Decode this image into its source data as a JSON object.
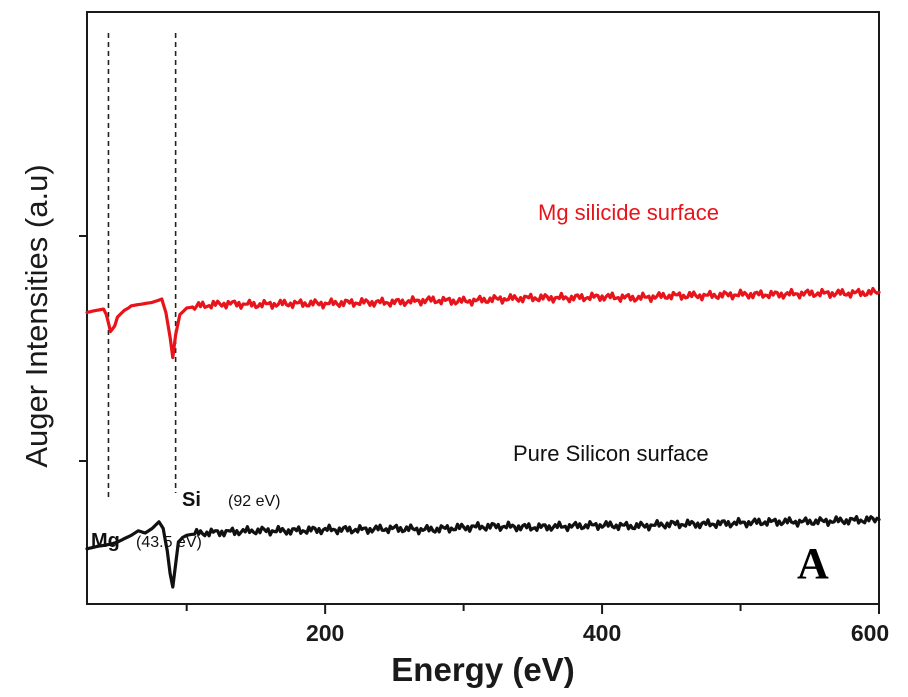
{
  "chart_data": {
    "type": "line",
    "title": "",
    "xlabel": "Energy (eV)",
    "ylabel": "Auger Intensities (a.u)",
    "xlim": [
      28,
      600
    ],
    "x_ticks": [
      200,
      400,
      600
    ],
    "panel_label": "A",
    "grid": false,
    "legend": "none",
    "series": [
      {
        "name": "Mg silicide surface",
        "color": "#e8141b",
        "x": [
          28,
          35,
          40,
          42,
          45,
          48,
          50,
          55,
          58,
          60,
          65,
          70,
          75,
          80,
          82,
          85,
          88,
          90,
          92,
          95,
          100,
          110,
          130,
          150,
          175,
          200,
          225,
          250,
          275,
          300,
          325,
          350,
          375,
          400,
          425,
          450,
          475,
          500,
          525,
          550,
          575,
          600
        ],
        "y": [
          0.66,
          0.67,
          0.675,
          0.65,
          0.575,
          0.6,
          0.64,
          0.67,
          0.68,
          0.69,
          0.695,
          0.7,
          0.705,
          0.715,
          0.72,
          0.66,
          0.55,
          0.46,
          0.56,
          0.65,
          0.68,
          0.69,
          0.7,
          0.695,
          0.7,
          0.7,
          0.705,
          0.705,
          0.715,
          0.71,
          0.72,
          0.725,
          0.725,
          0.73,
          0.725,
          0.735,
          0.735,
          0.74,
          0.74,
          0.745,
          0.745,
          0.75
        ]
      },
      {
        "name": "Pure Silicon surface",
        "color": "#111111",
        "x": [
          28,
          35,
          40,
          45,
          50,
          55,
          60,
          65,
          70,
          75,
          80,
          83,
          86,
          88,
          90,
          92,
          94,
          97,
          100,
          110,
          130,
          150,
          175,
          200,
          225,
          250,
          275,
          300,
          325,
          350,
          375,
          400,
          425,
          450,
          475,
          500,
          525,
          550,
          575,
          600
        ],
        "y": [
          -0.39,
          -0.38,
          -0.375,
          -0.37,
          -0.36,
          -0.345,
          -0.33,
          -0.31,
          -0.32,
          -0.3,
          -0.27,
          -0.3,
          -0.4,
          -0.5,
          -0.56,
          -0.46,
          -0.36,
          -0.34,
          -0.33,
          -0.32,
          -0.315,
          -0.31,
          -0.31,
          -0.305,
          -0.305,
          -0.3,
          -0.305,
          -0.295,
          -0.29,
          -0.295,
          -0.29,
          -0.285,
          -0.29,
          -0.28,
          -0.28,
          -0.275,
          -0.27,
          -0.27,
          -0.265,
          -0.26
        ]
      }
    ],
    "annotations": [
      {
        "element": "Mg",
        "value_label": "(43.5 eV)",
        "x": 43.5
      },
      {
        "element": "Si",
        "value_label": "(92 eV)",
        "x": 92
      }
    ]
  }
}
